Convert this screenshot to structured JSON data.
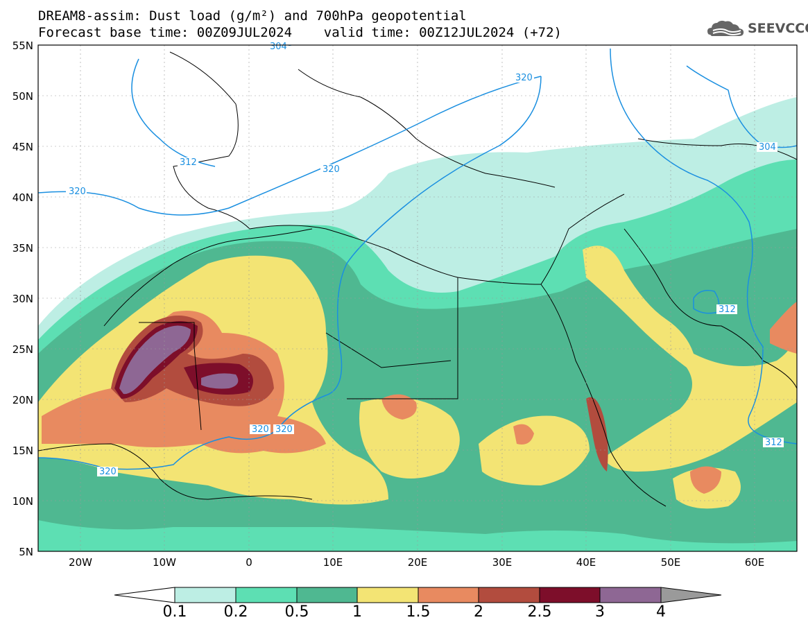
{
  "title": {
    "line1": "DREAM8-assim: Dust load (g/m²) and 700hPa geopotential",
    "line2": "Forecast base time: 00Z09JUL2024    valid time: 00Z12JUL2024 (+72)"
  },
  "logo": {
    "text": "SEEVCCC",
    "icon": "cloud-logo-icon"
  },
  "map": {
    "lon_range": [
      -25,
      65
    ],
    "lat_range": [
      5,
      55
    ],
    "lat_ticks": [
      "55N",
      "50N",
      "45N",
      "40N",
      "35N",
      "30N",
      "25N",
      "20N",
      "15N",
      "10N",
      "5N"
    ],
    "lon_ticks": [
      "20W",
      "10W",
      "0",
      "10E",
      "20E",
      "30E",
      "40E",
      "50E",
      "60E"
    ],
    "contour_labels": [
      "304",
      "320",
      "312",
      "320",
      "320",
      "312",
      "304",
      "320",
      "320",
      "320",
      "312"
    ]
  },
  "colorbar": {
    "labels": [
      "0.1",
      "0.2",
      "0.5",
      "1",
      "1.5",
      "2",
      "2.5",
      "3",
      "4"
    ],
    "colors": [
      "#ffffff",
      "#bdeee4",
      "#5ddfb3",
      "#4fb891",
      "#f3e474",
      "#e88a60",
      "#b24c3e",
      "#7d0e2a",
      "#8e6794",
      "#9a9a9a"
    ]
  },
  "colors": {
    "contour": "#1a8fe0",
    "border": "#000000"
  }
}
